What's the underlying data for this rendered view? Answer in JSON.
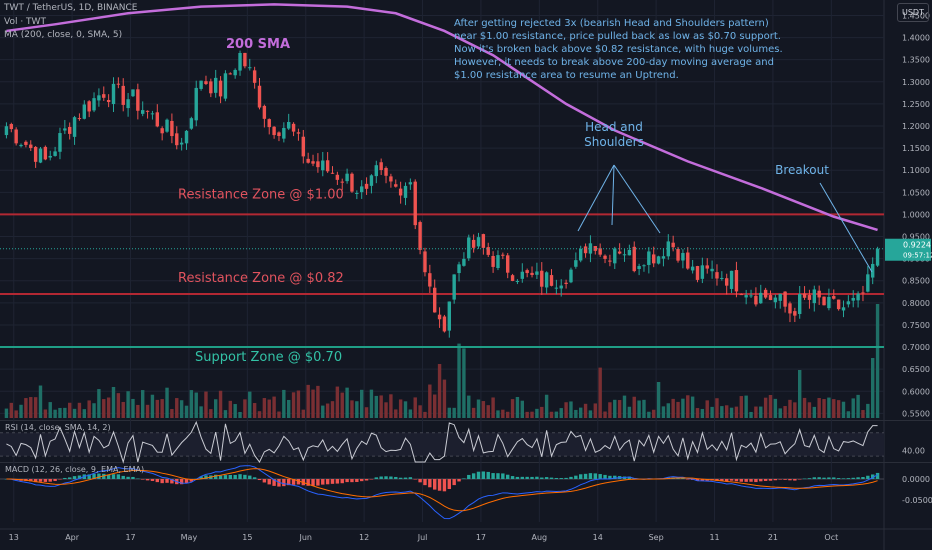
{
  "header": {
    "symbol_line": "TWT / TetherUS, 1D, BINANCE",
    "volume_line": "Vol · TWT",
    "ma_line": "MA (200, close, 0, SMA, 5)",
    "currency": "USDT"
  },
  "chart_data": {
    "type": "candlestick",
    "symbol": "TWT / TetherUS",
    "interval": "1D",
    "exchange": "BINANCE",
    "currency": "USDT",
    "x_tick_labels": [
      "13",
      "Apr",
      "17",
      "May",
      "15",
      "Jun",
      "12",
      "Jul",
      "17",
      "Aug",
      "14",
      "Sep",
      "11",
      "21",
      "Oct"
    ],
    "y_tick_labels": [
      1.45,
      1.4,
      1.35,
      1.3,
      1.25,
      1.2,
      1.15,
      1.1,
      1.05,
      1.0,
      0.95,
      0.9,
      0.85,
      0.8,
      0.75,
      0.7,
      0.65,
      0.6,
      0.55
    ],
    "y_tick_format": "4dp",
    "ylim": [
      0.535,
      1.485
    ],
    "price_anchors": [
      [
        0,
        1.2
      ],
      [
        8,
        1.12
      ],
      [
        14,
        1.22
      ],
      [
        20,
        1.28
      ],
      [
        26,
        1.26
      ],
      [
        30,
        1.22
      ],
      [
        36,
        1.16
      ],
      [
        40,
        1.31
      ],
      [
        44,
        1.28
      ],
      [
        48,
        1.36
      ],
      [
        50,
        1.32
      ],
      [
        54,
        1.2
      ],
      [
        58,
        1.2
      ],
      [
        62,
        1.12
      ],
      [
        66,
        1.1
      ],
      [
        70,
        1.08
      ],
      [
        74,
        1.04
      ],
      [
        76,
        1.09
      ],
      [
        80,
        1.06
      ],
      [
        83,
        1.08
      ],
      [
        84,
        0.99
      ],
      [
        86,
        0.86
      ],
      [
        88,
        0.79
      ],
      [
        89,
        0.74
      ],
      [
        90,
        0.76
      ],
      [
        92,
        0.86
      ],
      [
        94,
        0.92
      ],
      [
        97,
        0.93
      ],
      [
        100,
        0.9
      ],
      [
        103,
        0.88
      ],
      [
        106,
        0.86
      ],
      [
        110,
        0.85
      ],
      [
        114,
        0.86
      ],
      [
        117,
        0.88
      ],
      [
        119,
        0.93
      ],
      [
        121,
        0.94
      ],
      [
        123,
        0.9
      ],
      [
        125,
        0.93
      ],
      [
        127,
        0.92
      ],
      [
        129,
        0.89
      ],
      [
        131,
        0.91
      ],
      [
        134,
        0.91
      ],
      [
        136,
        0.94
      ],
      [
        138,
        0.92
      ],
      [
        140,
        0.88
      ],
      [
        142,
        0.86
      ],
      [
        145,
        0.87
      ],
      [
        148,
        0.86
      ],
      [
        151,
        0.84
      ],
      [
        154,
        0.82
      ],
      [
        158,
        0.81
      ],
      [
        161,
        0.78
      ],
      [
        163,
        0.8
      ],
      [
        166,
        0.81
      ],
      [
        169,
        0.79
      ],
      [
        172,
        0.79
      ],
      [
        175,
        0.8
      ],
      [
        177,
        0.84
      ],
      [
        179,
        0.9224
      ]
    ],
    "bars_count": 180,
    "last_price": "0.9224",
    "countdown": "09:57:12",
    "sma200": {
      "label": "200 SMA",
      "color": "#c36ddb",
      "points": [
        [
          0,
          1.415
        ],
        [
          10,
          1.43
        ],
        [
          25,
          1.455
        ],
        [
          40,
          1.47
        ],
        [
          55,
          1.475
        ],
        [
          70,
          1.47
        ],
        [
          80,
          1.455
        ],
        [
          90,
          1.415
        ],
        [
          100,
          1.36
        ],
        [
          115,
          1.25
        ],
        [
          125,
          1.19
        ],
        [
          140,
          1.12
        ],
        [
          155,
          1.06
        ],
        [
          170,
          0.995
        ],
        [
          180,
          0.965
        ]
      ]
    },
    "zones": [
      {
        "label": "Resistance Zone @ $1.00",
        "price": 1.0,
        "color": "#b22833",
        "text_color": "#e0535e"
      },
      {
        "label": "Resistance Zone @ $0.82",
        "price": 0.82,
        "color": "#b22833",
        "text_color": "#e0535e"
      },
      {
        "label": "Support Zone @ $0.70",
        "price": 0.7,
        "color": "#1f9e86",
        "text_color": "#33c2a6"
      }
    ],
    "annotations": {
      "head_shoulders": "Head and\nShoulders",
      "breakout": "Breakout",
      "commentary": [
        "After getting rejected 3x (bearish Head and Shoulders pattern)",
        "near $1.00 resistance, price pulled back as low as $0.70 support.",
        "Now it's broken back above $0.82 resistance, with huge volumes.",
        "However, it needs to break above 200-day moving average and",
        "$1.00 resistance area to resume an Uptrend."
      ]
    },
    "volume_spikes": [
      [
        89,
        0.45
      ],
      [
        90,
        0.32
      ],
      [
        93,
        0.62
      ],
      [
        94,
        0.58
      ],
      [
        122,
        0.42
      ],
      [
        134,
        0.3
      ],
      [
        163,
        0.4
      ],
      [
        179,
        0.95
      ],
      [
        178,
        0.5
      ]
    ],
    "rsi": {
      "label": "RSI (14, close, SMA, 14, 2)",
      "tick": "40.00",
      "levels": [
        70,
        30
      ]
    },
    "macd": {
      "label": "MACD (12, 26, close, 9, EMA, EMA)",
      "ticks": [
        "0.0000",
        "-0.0500"
      ]
    },
    "colors": {
      "up": "#26a69a",
      "down": "#ef5350",
      "bg": "#131722",
      "grid": "#1f2433",
      "axis_text": "#b2b5be",
      "annotation_text": "#6fb3e8"
    }
  }
}
